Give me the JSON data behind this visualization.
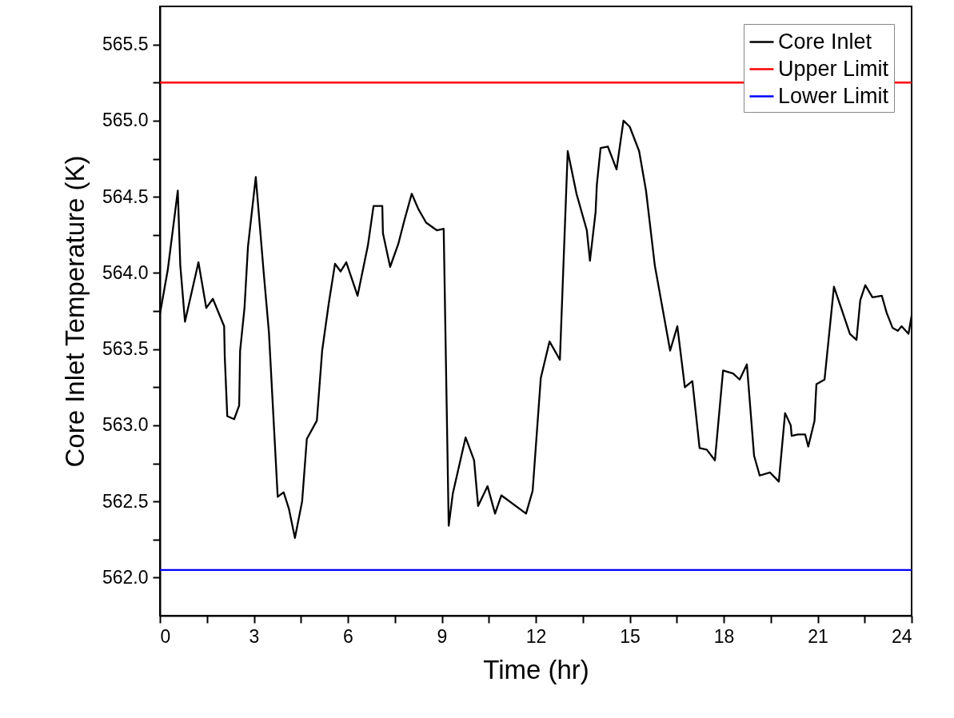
{
  "chart_data": {
    "type": "line",
    "xlabel": "Time (hr)",
    "ylabel": "Core Inlet Temperature (K)",
    "xlim": [
      0,
      24
    ],
    "xticks": [
      0,
      {
        "value": 1.5,
        "label": null
      },
      3,
      {
        "value": 4.5,
        "label": null
      },
      6,
      {
        "value": 7.5,
        "label": null
      },
      9,
      {
        "value": 10.5,
        "label": null
      },
      12,
      {
        "value": 13.5,
        "label": null
      },
      15,
      {
        "value": 16.5,
        "label": null
      },
      18,
      {
        "value": 19.5,
        "label": null
      },
      21,
      {
        "value": 22.5,
        "label": null
      },
      24
    ],
    "ylim": [
      561.75,
      565.75
    ],
    "yticks": [
      {
        "value": 562,
        "label": "562.0"
      },
      {
        "value": 562.25,
        "label": null
      },
      {
        "value": 562.5,
        "label": "562.5"
      },
      {
        "value": 562.75,
        "label": null
      },
      {
        "value": 563,
        "label": "563.0"
      },
      {
        "value": 563.25,
        "label": null
      },
      {
        "value": 563.5,
        "label": "563.5"
      },
      {
        "value": 563.75,
        "label": null
      },
      {
        "value": 564,
        "label": "564.0"
      },
      {
        "value": 564.25,
        "label": null
      },
      {
        "value": 564.5,
        "label": "564.5"
      },
      {
        "value": 564.75,
        "label": null
      },
      {
        "value": 565,
        "label": "565.0"
      },
      {
        "value": 565.25,
        "label": null
      },
      {
        "value": 565.5,
        "label": "565.5"
      }
    ],
    "grid": false,
    "legend": "top right",
    "marker": "none",
    "line_style": "solid",
    "series": [
      {
        "name": "Core Inlet",
        "color": "#000000",
        "x": [
          0,
          0.25,
          0.57,
          0.65,
          0.8,
          1.23,
          1.48,
          1.69,
          2.05,
          2.07,
          2.15,
          2.37,
          2.53,
          2.56,
          2.7,
          2.81,
          3.06,
          3.31,
          3.48,
          3.76,
          3.95,
          4.12,
          4.31,
          4.54,
          4.69,
          5.01,
          5.18,
          5.39,
          5.59,
          5.77,
          5.95,
          6.31,
          6.64,
          6.82,
          7.1,
          7.12,
          7.35,
          7.61,
          7.81,
          8.04,
          8.25,
          8.5,
          8.84,
          9.06,
          9.22,
          9.35,
          9.76,
          10.03,
          10.16,
          10.46,
          10.7,
          10.9,
          11.69,
          11.9,
          12.16,
          12.44,
          12.77,
          13.02,
          13.3,
          13.63,
          13.73,
          13.91,
          13.95,
          14.07,
          14.3,
          14.58,
          14.8,
          15.0,
          15.3,
          15.52,
          15.8,
          16.29,
          16.52,
          16.76,
          17.0,
          17.23,
          17.46,
          17.72,
          17.98,
          18.3,
          18.51,
          18.74,
          18.97,
          19.15,
          19.48,
          19.76,
          19.96,
          20.14,
          20.17,
          20.37,
          20.6,
          20.7,
          20.9,
          20.96,
          21.22,
          21.52,
          21.75,
          22.03,
          22.24,
          22.36,
          22.52,
          22.75,
          23.05,
          23.2,
          23.39,
          23.56,
          23.68,
          23.9,
          24.0
        ],
        "values": [
          563.73,
          564.02,
          564.54,
          564.05,
          563.68,
          564.07,
          563.77,
          563.83,
          563.65,
          563.45,
          563.06,
          563.04,
          563.13,
          563.49,
          563.77,
          564.17,
          564.63,
          564.01,
          563.61,
          562.53,
          562.56,
          562.45,
          562.26,
          562.5,
          562.91,
          563.03,
          563.49,
          563.8,
          564.06,
          564.01,
          564.07,
          563.85,
          564.18,
          564.44,
          564.44,
          564.26,
          564.04,
          564.19,
          564.35,
          564.52,
          564.42,
          564.33,
          564.28,
          564.29,
          562.34,
          562.55,
          562.92,
          562.77,
          562.47,
          562.6,
          562.42,
          562.54,
          562.42,
          562.57,
          563.31,
          563.55,
          563.43,
          564.8,
          564.52,
          564.28,
          564.08,
          564.4,
          564.58,
          564.82,
          564.83,
          564.68,
          565.0,
          564.96,
          564.8,
          564.54,
          564.05,
          563.49,
          563.65,
          563.25,
          563.29,
          562.85,
          562.84,
          562.77,
          563.36,
          563.34,
          563.3,
          563.4,
          562.8,
          562.67,
          562.69,
          562.63,
          563.08,
          563.0,
          562.93,
          562.94,
          562.94,
          562.86,
          563.03,
          563.27,
          563.3,
          563.91,
          563.77,
          563.6,
          563.56,
          563.82,
          563.92,
          563.84,
          563.85,
          563.74,
          563.64,
          563.62,
          563.65,
          563.6,
          563.72
        ]
      },
      {
        "name": "Upper Limit",
        "color": "#ff0000",
        "x": [
          0,
          24
        ],
        "values": [
          565.25,
          565.25
        ]
      },
      {
        "name": "Lower Limit",
        "color": "#0000ff",
        "x": [
          0,
          24
        ],
        "values": [
          562.05,
          562.05
        ]
      }
    ]
  }
}
